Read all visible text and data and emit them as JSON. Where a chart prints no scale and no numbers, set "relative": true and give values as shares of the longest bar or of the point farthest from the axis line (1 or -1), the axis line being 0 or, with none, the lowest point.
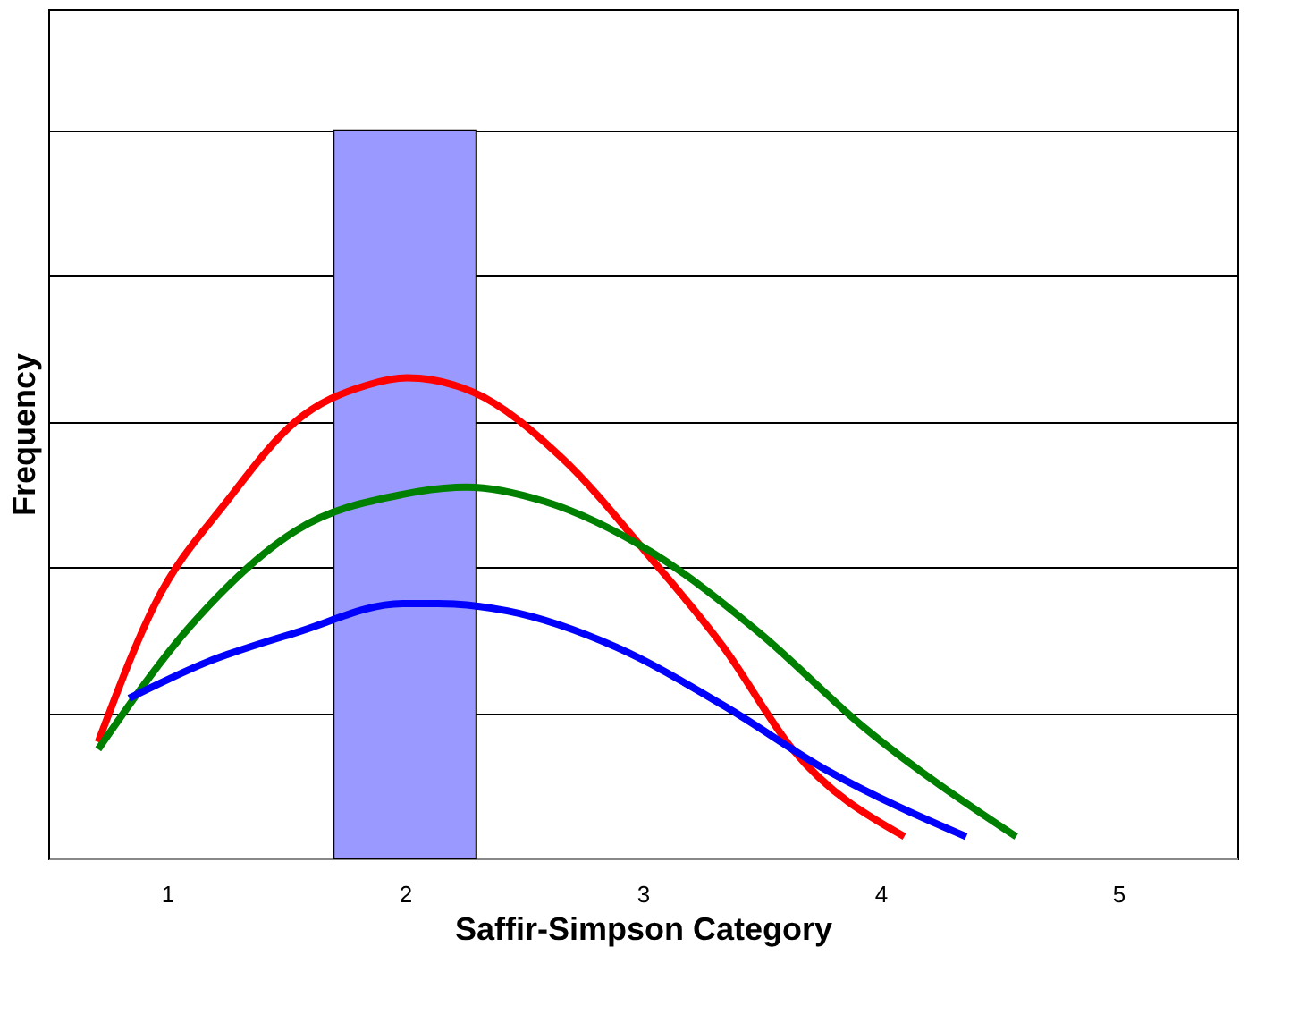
{
  "chart_data": {
    "type": "bar",
    "relative": true,
    "xlabel": "Saffir-Simpson Category",
    "ylabel": "Frequency",
    "x": [
      2
    ],
    "xlim": [
      0.5,
      5.5
    ],
    "xticks": [
      1,
      2,
      3,
      4,
      5
    ],
    "values": [
      1
    ],
    "color": "#9999ff",
    "grid": "y",
    "series": [
      {
        "type": "line",
        "color": "#ff0000",
        "x": [
          0.71,
          0.95,
          1.25,
          1.54,
          1.84,
          2.01,
          2.29,
          2.66,
          3.04,
          3.34,
          3.63,
          4.1
        ],
        "values": [
          0.16,
          0.35,
          0.49,
          0.6,
          0.65,
          0.66,
          0.64,
          0.55,
          0.41,
          0.29,
          0.15,
          0.03
        ]
      },
      {
        "type": "line",
        "color": "#008000",
        "x": [
          0.71,
          1.1,
          1.54,
          1.99,
          2.26,
          2.59,
          3.04,
          3.49,
          3.93,
          4.57
        ],
        "values": [
          0.15,
          0.32,
          0.45,
          0.5,
          0.51,
          0.49,
          0.42,
          0.31,
          0.18,
          0.03
        ]
      },
      {
        "type": "line",
        "color": "#0000ff",
        "x": [
          0.84,
          1.17,
          1.54,
          1.99,
          2.14,
          2.43,
          2.89,
          3.34,
          3.78,
          4.36
        ],
        "values": [
          0.22,
          0.27,
          0.31,
          0.35,
          0.35,
          0.34,
          0.29,
          0.21,
          0.12,
          0.03
        ]
      }
    ]
  }
}
